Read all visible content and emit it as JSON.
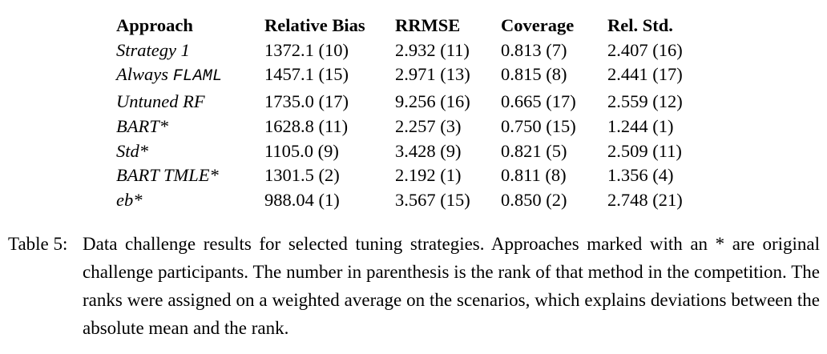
{
  "table": {
    "columns": [
      "Approach",
      "Relative Bias",
      "RRMSE",
      "Coverage",
      "Rel. Std."
    ],
    "rows": [
      {
        "approach": "Strategy 1",
        "approach_mono": "",
        "relative_bias": "1372.1 (10)",
        "rrmse": "2.932 (11)",
        "coverage": "0.813 (7)",
        "rel_std": "2.407 (16)"
      },
      {
        "approach": "Always",
        "approach_mono": "FLAML",
        "relative_bias": "1457.1 (15)",
        "rrmse": "2.971 (13)",
        "coverage": "0.815 (8)",
        "rel_std": "2.441 (17)"
      },
      {
        "approach": "Untuned RF",
        "approach_mono": "",
        "relative_bias": "1735.0 (17)",
        "rrmse": "9.256 (16)",
        "coverage": "0.665 (17)",
        "rel_std": "2.559 (12)"
      },
      {
        "approach": "BART*",
        "approach_mono": "",
        "relative_bias": "1628.8 (11)",
        "rrmse": "2.257 (3)",
        "coverage": "0.750 (15)",
        "rel_std": "1.244 (1)"
      },
      {
        "approach": "Std*",
        "approach_mono": "",
        "relative_bias": "1105.0 (9)",
        "rrmse": "3.428 (9)",
        "coverage": "0.821 (5)",
        "rel_std": "2.509 (11)"
      },
      {
        "approach": "BART TMLE*",
        "approach_mono": "",
        "relative_bias": "1301.5 (2)",
        "rrmse": "2.192 (1)",
        "coverage": "0.811 (8)",
        "rel_std": "1.356 (4)"
      },
      {
        "approach": "eb*",
        "approach_mono": "",
        "relative_bias": "988.04 (1)",
        "rrmse": "3.567 (15)",
        "coverage": "0.850 (2)",
        "rel_std": "2.748 (21)"
      }
    ]
  },
  "caption": {
    "label": "Table 5:",
    "text": "Data challenge results for selected tuning strategies. Approaches marked with an * are original challenge participants. The number in parenthesis is the rank of that method in the competition. The ranks were assigned on a weighted average on the scenarios, which explains deviations between the absolute mean and the rank."
  },
  "colors": {
    "text": "#000000",
    "background": "#ffffff"
  }
}
